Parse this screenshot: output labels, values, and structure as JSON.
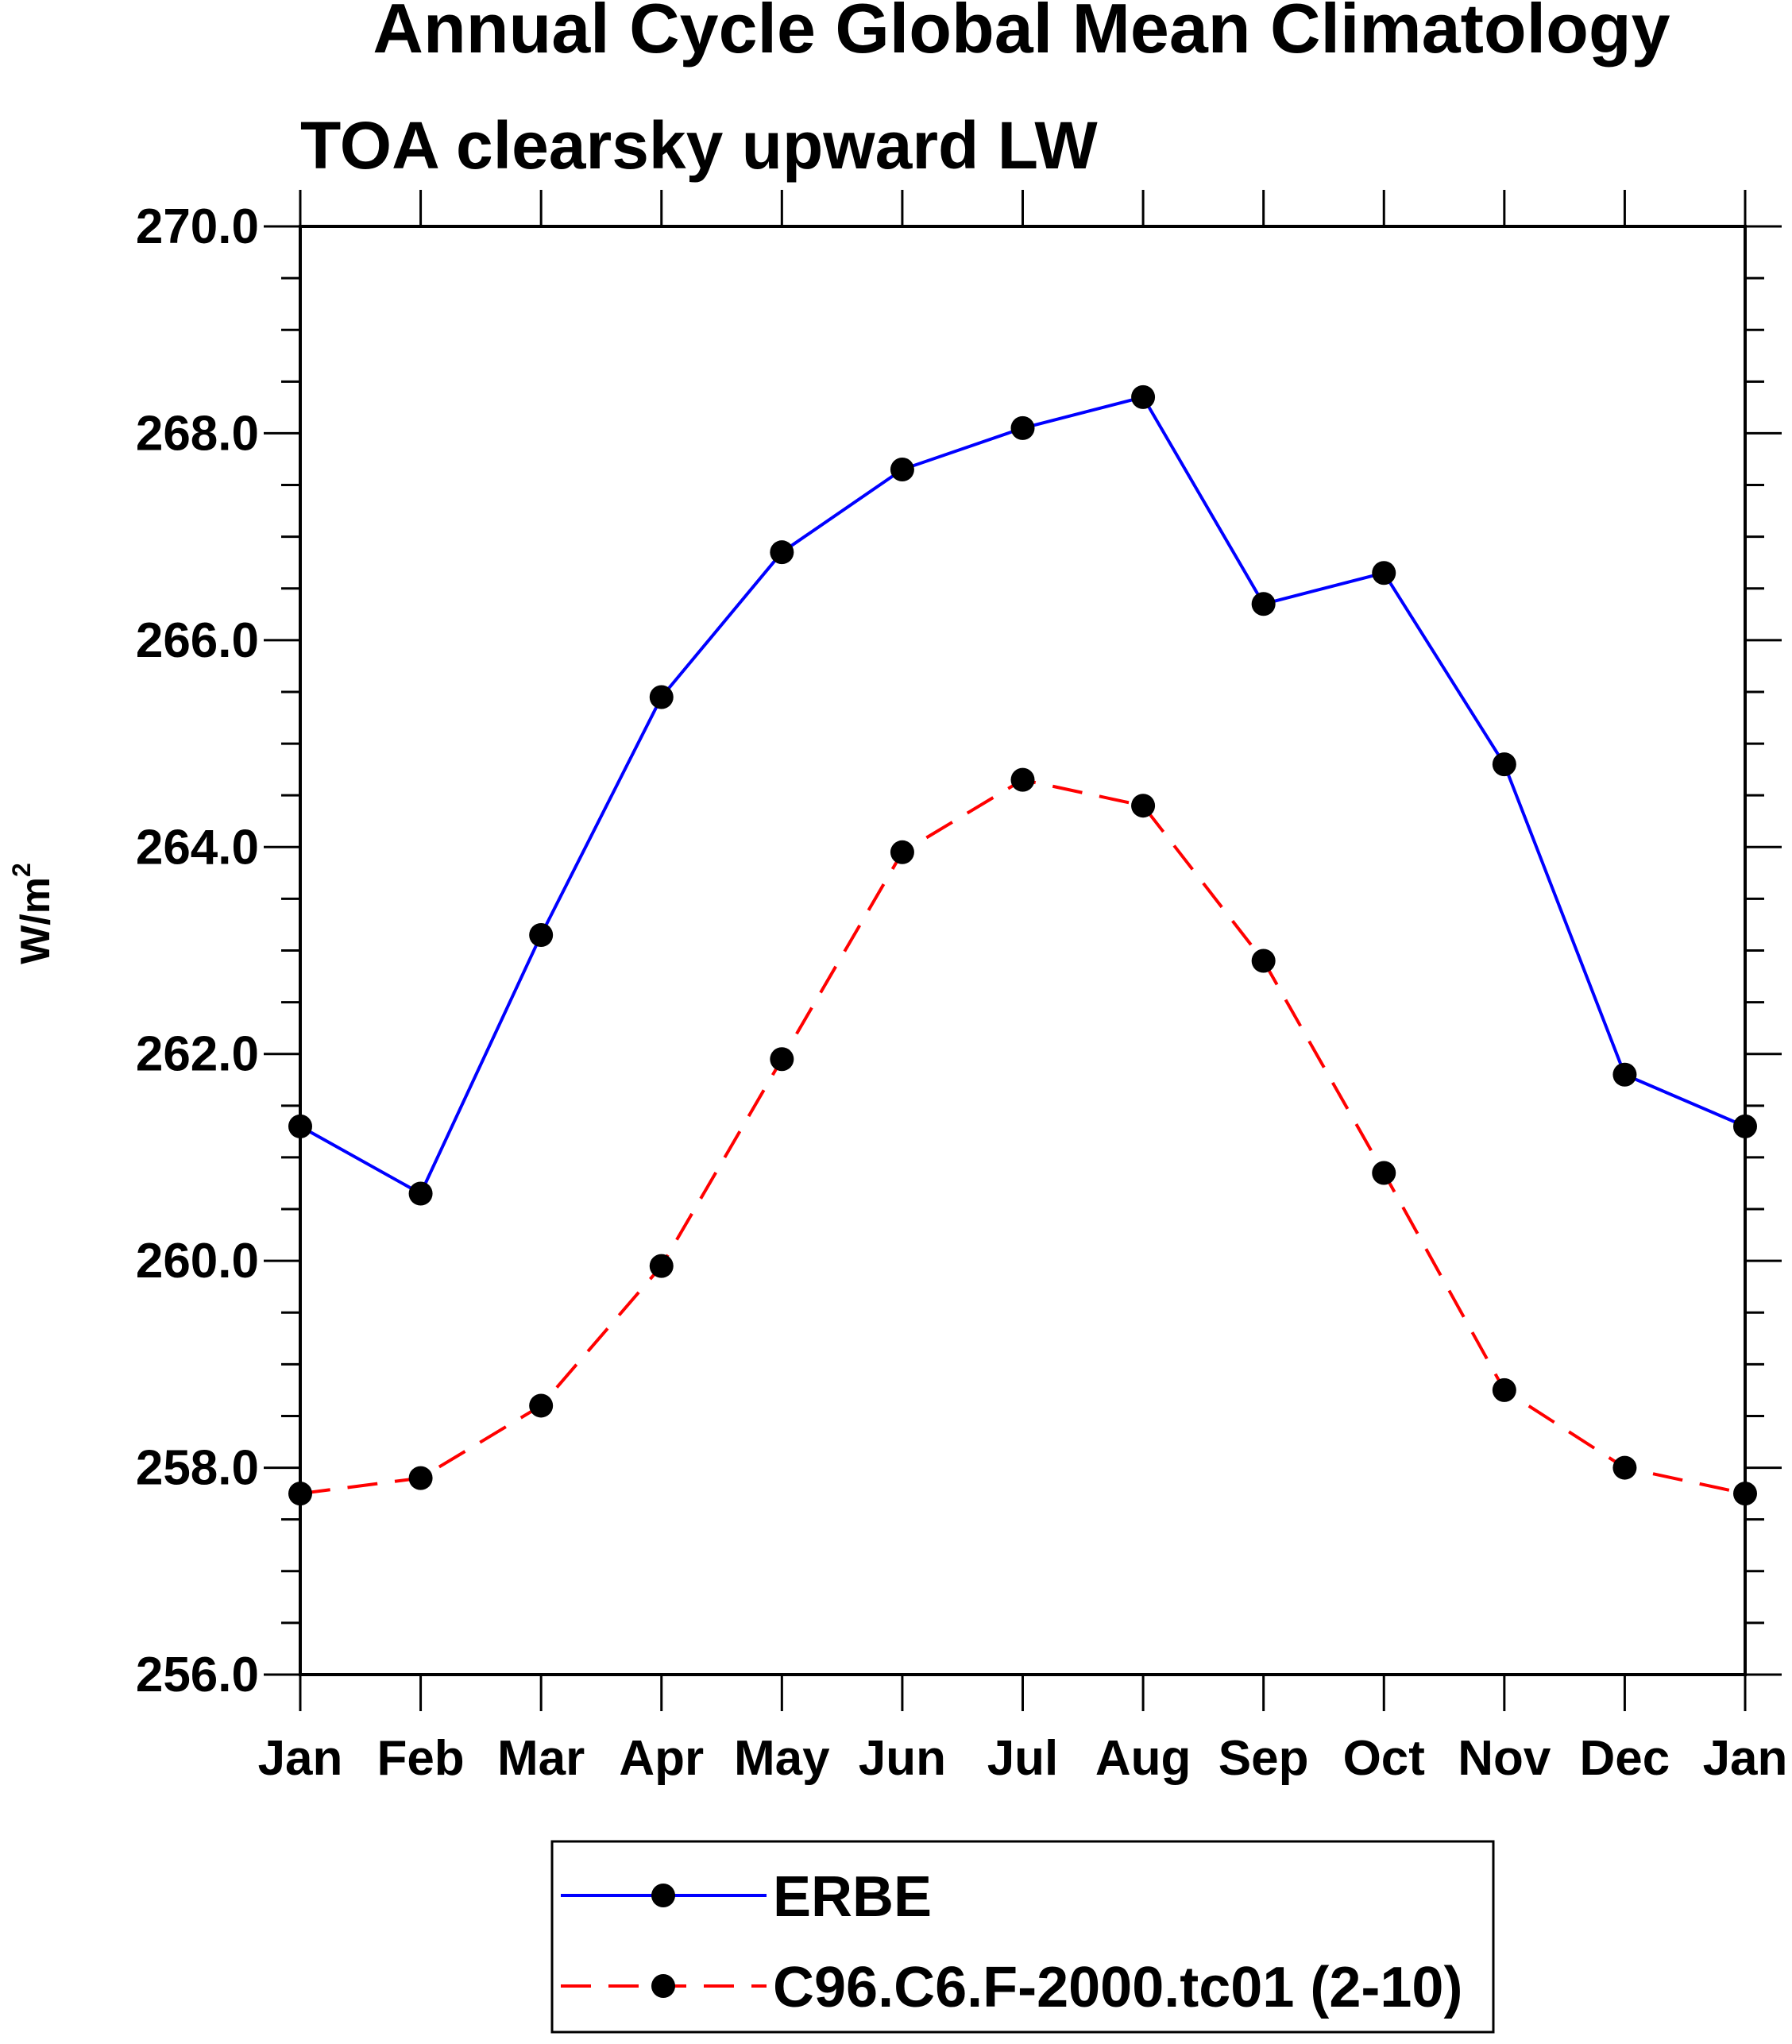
{
  "chart_data": {
    "type": "line",
    "title": "Annual Cycle Global Mean Climatology",
    "subtitle": "TOA clearsky upward LW",
    "ylabel": "W/m",
    "ylabel_superscript": "2",
    "ylim": [
      256.0,
      270.0
    ],
    "yticks": [
      "256.0",
      "258.0",
      "260.0",
      "262.0",
      "264.0",
      "266.0",
      "268.0",
      "270.0"
    ],
    "ytick_values": [
      256,
      258,
      260,
      262,
      264,
      266,
      268,
      270
    ],
    "categories": [
      "Jan",
      "Feb",
      "Mar",
      "Apr",
      "May",
      "Jun",
      "Jul",
      "Aug",
      "Sep",
      "Oct",
      "Nov",
      "Dec",
      "Jan"
    ],
    "series": [
      {
        "name": "ERBE",
        "color": "#0000ff",
        "style": "solid",
        "marker": "filled-circle",
        "values": [
          261.3,
          260.65,
          263.15,
          265.45,
          266.85,
          267.65,
          268.05,
          268.35,
          266.35,
          266.65,
          264.8,
          261.8,
          261.3
        ]
      },
      {
        "name": "C96.C6.F-2000.tc01 (2-10)",
        "color": "#ff0000",
        "style": "dashed",
        "marker": "filled-circle",
        "values": [
          257.75,
          257.9,
          258.6,
          259.95,
          261.95,
          263.95,
          264.65,
          264.4,
          262.9,
          260.85,
          258.75,
          258.0,
          257.75
        ]
      }
    ],
    "legend_position": "bottom-center",
    "grid": false
  }
}
